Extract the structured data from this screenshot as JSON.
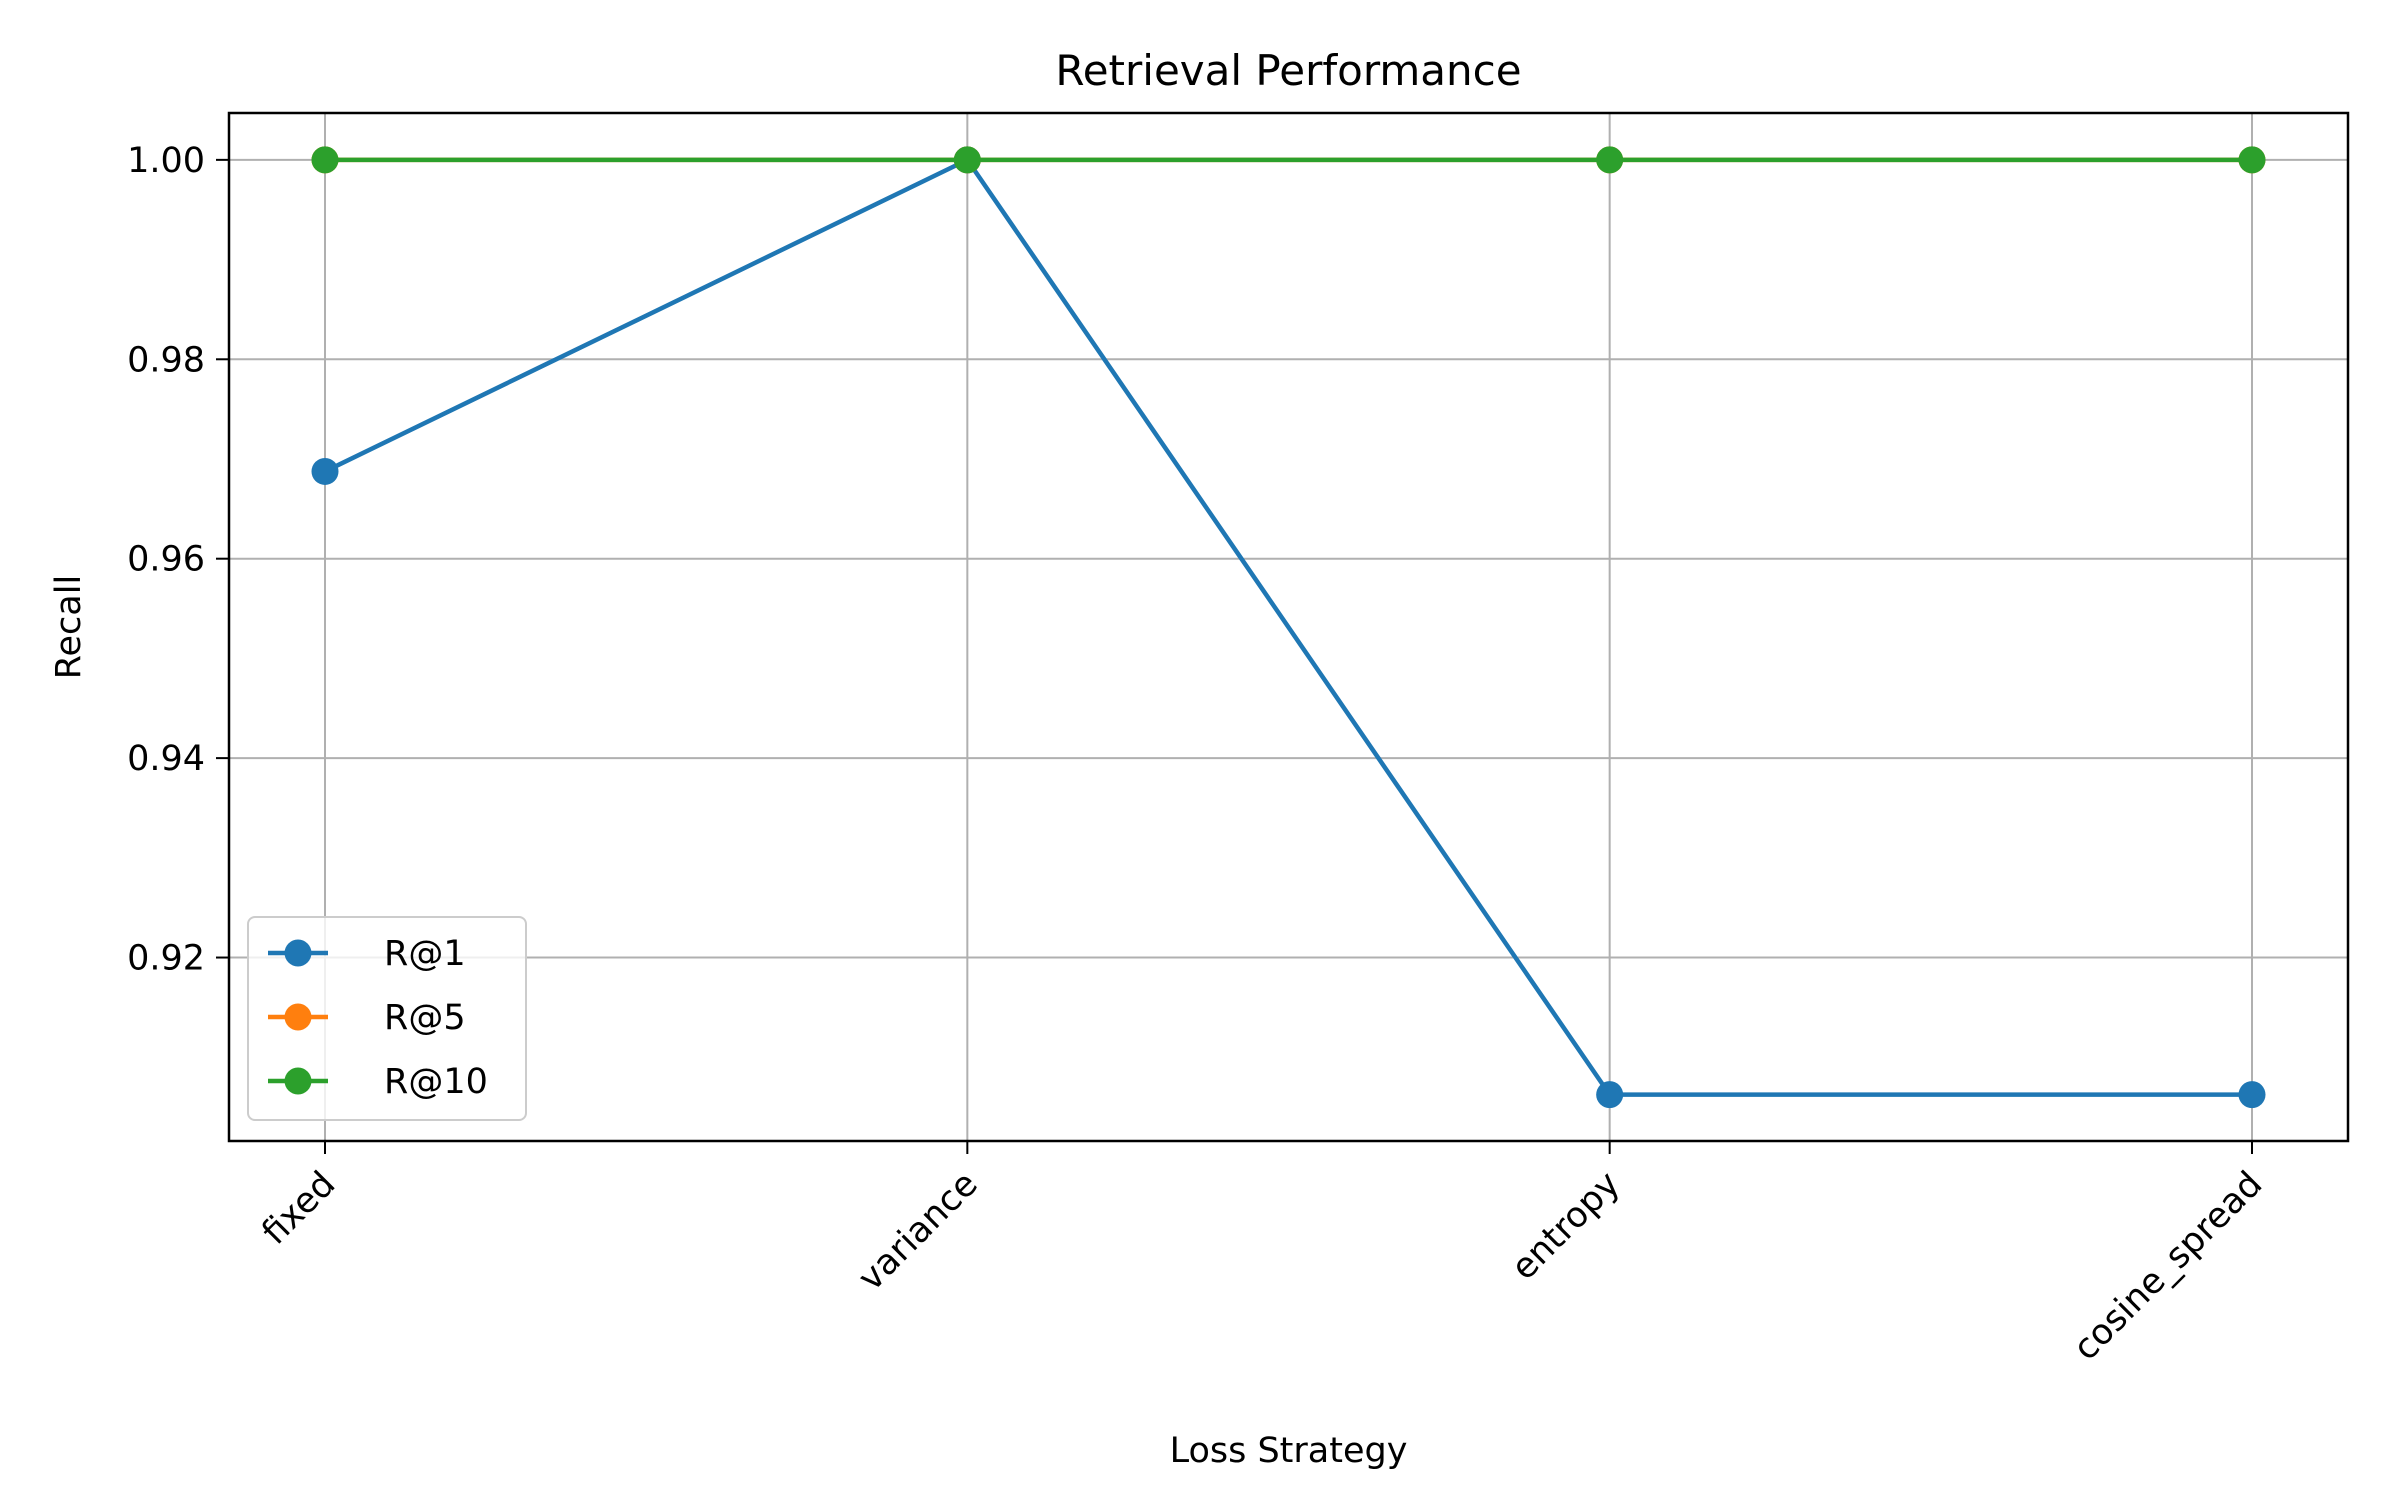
{
  "chart_data": {
    "type": "line",
    "title": "Retrieval Performance",
    "xlabel": "Loss Strategy",
    "ylabel": "Recall",
    "categories": [
      "fixed",
      "variance",
      "entropy",
      "cosine_spread"
    ],
    "series": [
      {
        "name": "R@1",
        "color": "#1f77b4",
        "values": [
          0.96875,
          1.0,
          0.90625,
          0.90625
        ]
      },
      {
        "name": "R@5",
        "color": "#ff7f0e",
        "values": [
          1.0,
          1.0,
          1.0,
          1.0
        ]
      },
      {
        "name": "R@10",
        "color": "#2ca02c",
        "values": [
          1.0,
          1.0,
          1.0,
          1.0
        ]
      }
    ],
    "ylim": [
      0.9016,
      1.0047
    ],
    "yticks": [
      0.92,
      0.94,
      0.96,
      0.98,
      1.0
    ],
    "ytick_labels": [
      "0.92",
      "0.94",
      "0.96",
      "0.98",
      "1.00"
    ],
    "grid": true,
    "legend_position": "lower-left"
  }
}
